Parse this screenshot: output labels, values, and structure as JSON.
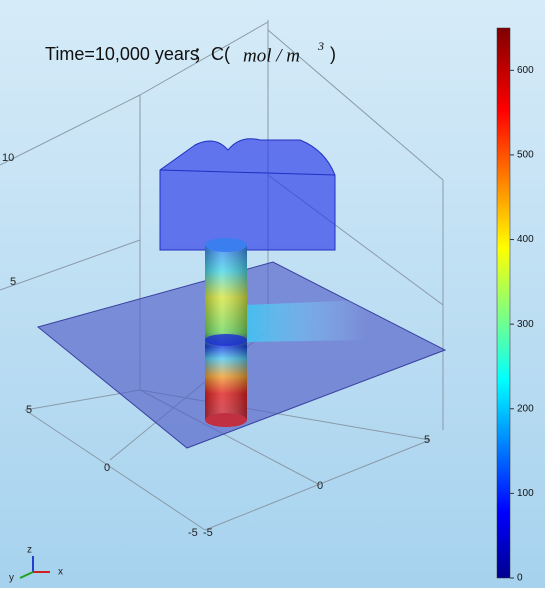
{
  "title": {
    "time": "Time=10,000 years",
    "sep": "；C(",
    "unit": "mol / m",
    "exp": "3",
    "close": ")"
  },
  "axes": {
    "z": [
      10,
      5
    ],
    "y": [
      5,
      0,
      -5
    ],
    "x": [
      -5,
      0,
      5
    ],
    "gizmo": [
      "z",
      "y",
      "x"
    ]
  },
  "colorbar": {
    "lim": [
      0,
      650
    ],
    "ticks": [
      0,
      100,
      200,
      300,
      400,
      500,
      600
    ]
  }
}
